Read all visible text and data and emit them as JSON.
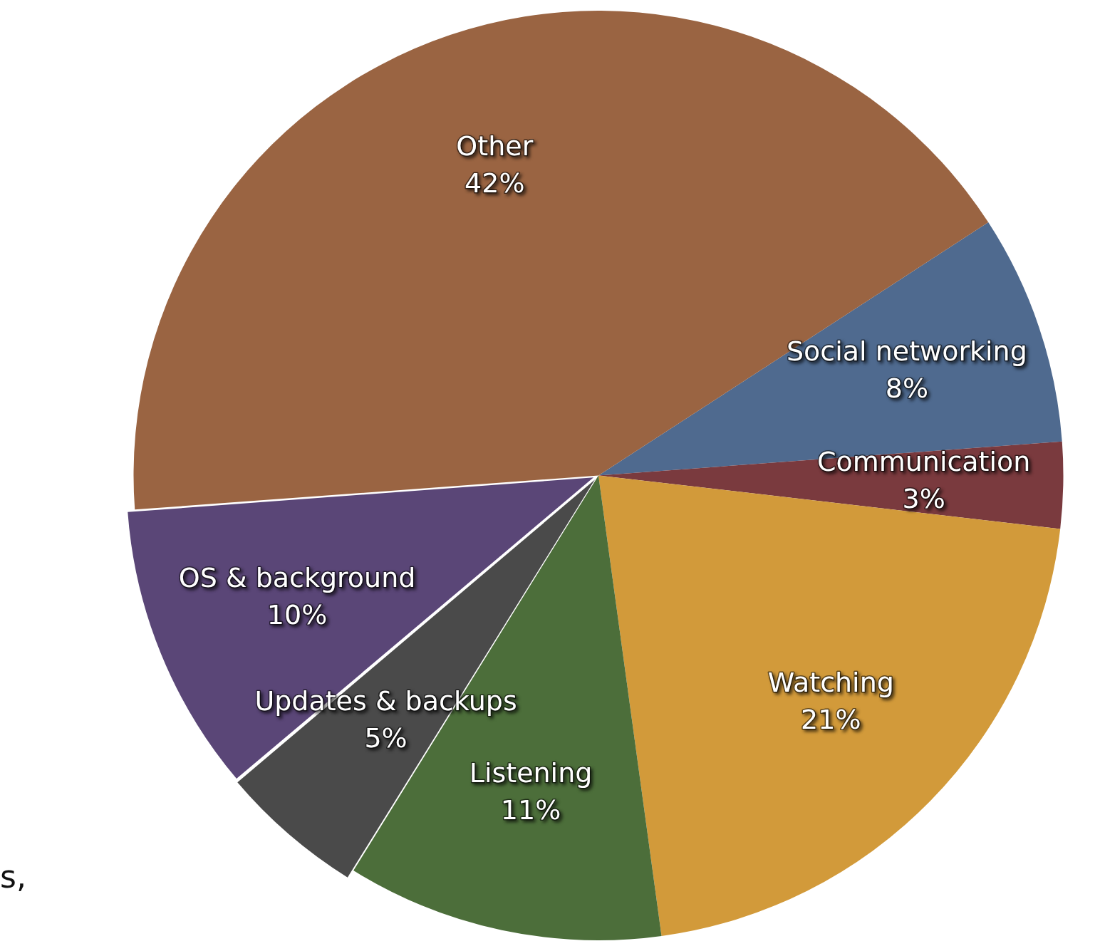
{
  "chart_data": {
    "type": "pie",
    "categories": [
      "Social networking",
      "Communication",
      "Watching",
      "Listening",
      "Updates & backups",
      "OS & background",
      "Other"
    ],
    "values": [
      8,
      3,
      21,
      11,
      5,
      10,
      42
    ],
    "value_labels": [
      "8%",
      "3%",
      "21%",
      "11%",
      "5%",
      "10%",
      "42%"
    ],
    "colors": [
      "#4f6a8f",
      "#7a3a3e",
      "#d29a3a",
      "#4c6e3a",
      "#4a4a4a",
      "#5a4677",
      "#9a6442"
    ],
    "legend": false,
    "annotations": [
      "s,"
    ]
  }
}
